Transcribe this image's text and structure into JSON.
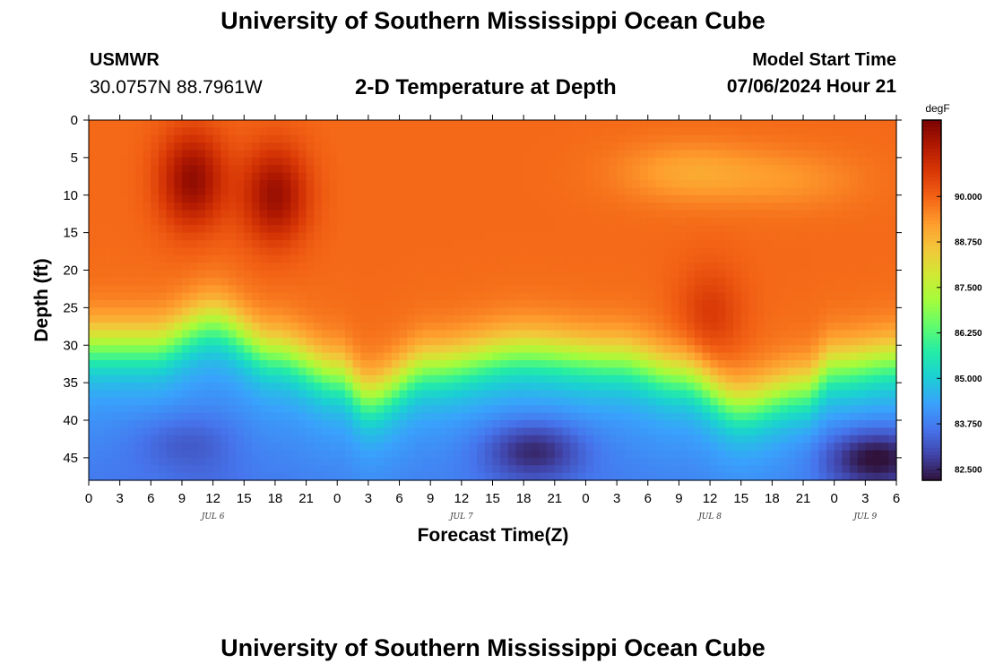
{
  "header": {
    "title": "University of Southern Mississippi Ocean Cube",
    "station": "USMWR",
    "coordinates": "30.0757N  88.7961W",
    "subtitle": "2-D Temperature at Depth",
    "model_label": "Model Start Time",
    "model_time": "07/06/2024 Hour 21"
  },
  "footer": {
    "title": "University of Southern Mississippi Ocean Cube"
  },
  "colors": {
    "palette": [
      "#30123b",
      "#4145ab",
      "#4675ed",
      "#39a2fc",
      "#1bcfd4",
      "#24eca6",
      "#61fc6c",
      "#a4fc3b",
      "#d1e834",
      "#f3c63a",
      "#fe9b2d",
      "#f36315",
      "#d93806",
      "#b11901",
      "#7a0403"
    ]
  },
  "chart_data": {
    "type": "heatmap",
    "title": "2-D Temperature at Depth",
    "xlabel": "Forecast Time(Z)",
    "ylabel": "Depth (ft)",
    "x_tick_labels": [
      "0",
      "3",
      "6",
      "9",
      "12",
      "15",
      "18",
      "21",
      "0",
      "3",
      "6",
      "9",
      "12",
      "15",
      "18",
      "21",
      "0",
      "3",
      "6",
      "9",
      "12",
      "15",
      "18",
      "21",
      "0",
      "3",
      "6"
    ],
    "x_range_hours": [
      0,
      78
    ],
    "date_labels": [
      {
        "label": "JUL 6",
        "hour": 12
      },
      {
        "label": "JUL 7",
        "hour": 36
      },
      {
        "label": "JUL 8",
        "hour": 60
      },
      {
        "label": "JUL 9",
        "hour": 75
      }
    ],
    "y_ticks": [
      0,
      5,
      10,
      15,
      20,
      25,
      30,
      35,
      40,
      45
    ],
    "y_range_ft": [
      0,
      48
    ],
    "colorbar": {
      "unit": "degF",
      "range": [
        82.2,
        92.1
      ],
      "ticks": [
        "82.500",
        "83.750",
        "85.000",
        "86.250",
        "87.500",
        "88.750",
        "90.000"
      ],
      "tick_values": [
        82.5,
        83.75,
        85.0,
        86.25,
        87.5,
        88.75,
        90.0
      ]
    },
    "model": {
      "surface_base_degF": 89.9,
      "deep_base_degF": 84.2,
      "thermocline_depth_ft_by_hour": [
        {
          "hour": 0,
          "depth": 30
        },
        {
          "hour": 6,
          "depth": 30
        },
        {
          "hour": 12,
          "depth": 27
        },
        {
          "hour": 18,
          "depth": 31
        },
        {
          "hour": 24,
          "depth": 34
        },
        {
          "hour": 27,
          "depth": 37
        },
        {
          "hour": 33,
          "depth": 33
        },
        {
          "hour": 42,
          "depth": 31
        },
        {
          "hour": 51,
          "depth": 32
        },
        {
          "hour": 57,
          "depth": 34
        },
        {
          "hour": 63,
          "depth": 38
        },
        {
          "hour": 69,
          "depth": 36
        },
        {
          "hour": 72,
          "depth": 33
        },
        {
          "hour": 78,
          "depth": 32
        }
      ],
      "warm_cores": [
        {
          "hour": 10,
          "depth": 8,
          "delta": 1.9
        },
        {
          "hour": 18,
          "depth": 10,
          "delta": 1.8
        },
        {
          "hour": 60,
          "depth": 26,
          "delta": 0.8
        }
      ],
      "cool_spots": [
        {
          "hour": 58,
          "depth": 7,
          "delta": -0.8
        },
        {
          "hour": 68,
          "depth": 8,
          "delta": -0.5
        },
        {
          "hour": 9,
          "depth": 43,
          "delta": -0.6
        },
        {
          "hour": 43,
          "depth": 44,
          "delta": -1.4
        },
        {
          "hour": 76,
          "depth": 45,
          "delta": -1.8
        }
      ]
    }
  }
}
